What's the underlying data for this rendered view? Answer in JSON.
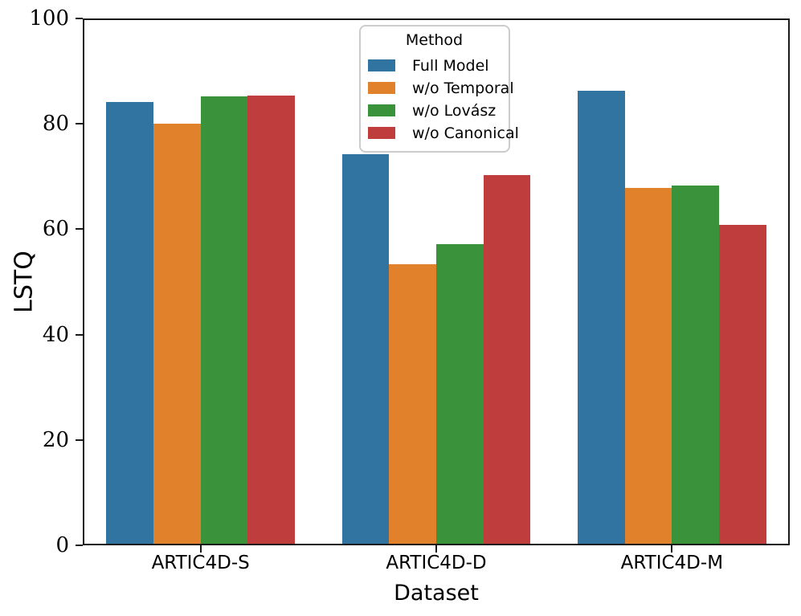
{
  "chart_data": {
    "type": "bar",
    "title": "",
    "xlabel": "Dataset",
    "ylabel": "LSTQ",
    "categories": [
      "ARTIC4D-S",
      "ARTIC4D-D",
      "ARTIC4D-M"
    ],
    "series": [
      {
        "name": "Full Model",
        "color": "#3274A1",
        "values": [
          84.1,
          74.2,
          86.3
        ]
      },
      {
        "name": "w/o Temporal",
        "color": "#E1812C",
        "values": [
          80.1,
          53.3,
          67.9
        ]
      },
      {
        "name": "w/o Lovász",
        "color": "#3A923A",
        "values": [
          85.2,
          57.1,
          68.3
        ]
      },
      {
        "name": "w/o Canonical",
        "color": "#C03D3E",
        "values": [
          85.3,
          70.3,
          60.9
        ]
      }
    ],
    "ylim": [
      0,
      100
    ],
    "yticks": [
      0,
      20,
      40,
      60,
      80,
      100
    ],
    "bar_group_width": 0.8,
    "grid": false,
    "legend": {
      "title": "Method",
      "position": "upper center"
    },
    "axis_color": "#1a1a1a"
  }
}
